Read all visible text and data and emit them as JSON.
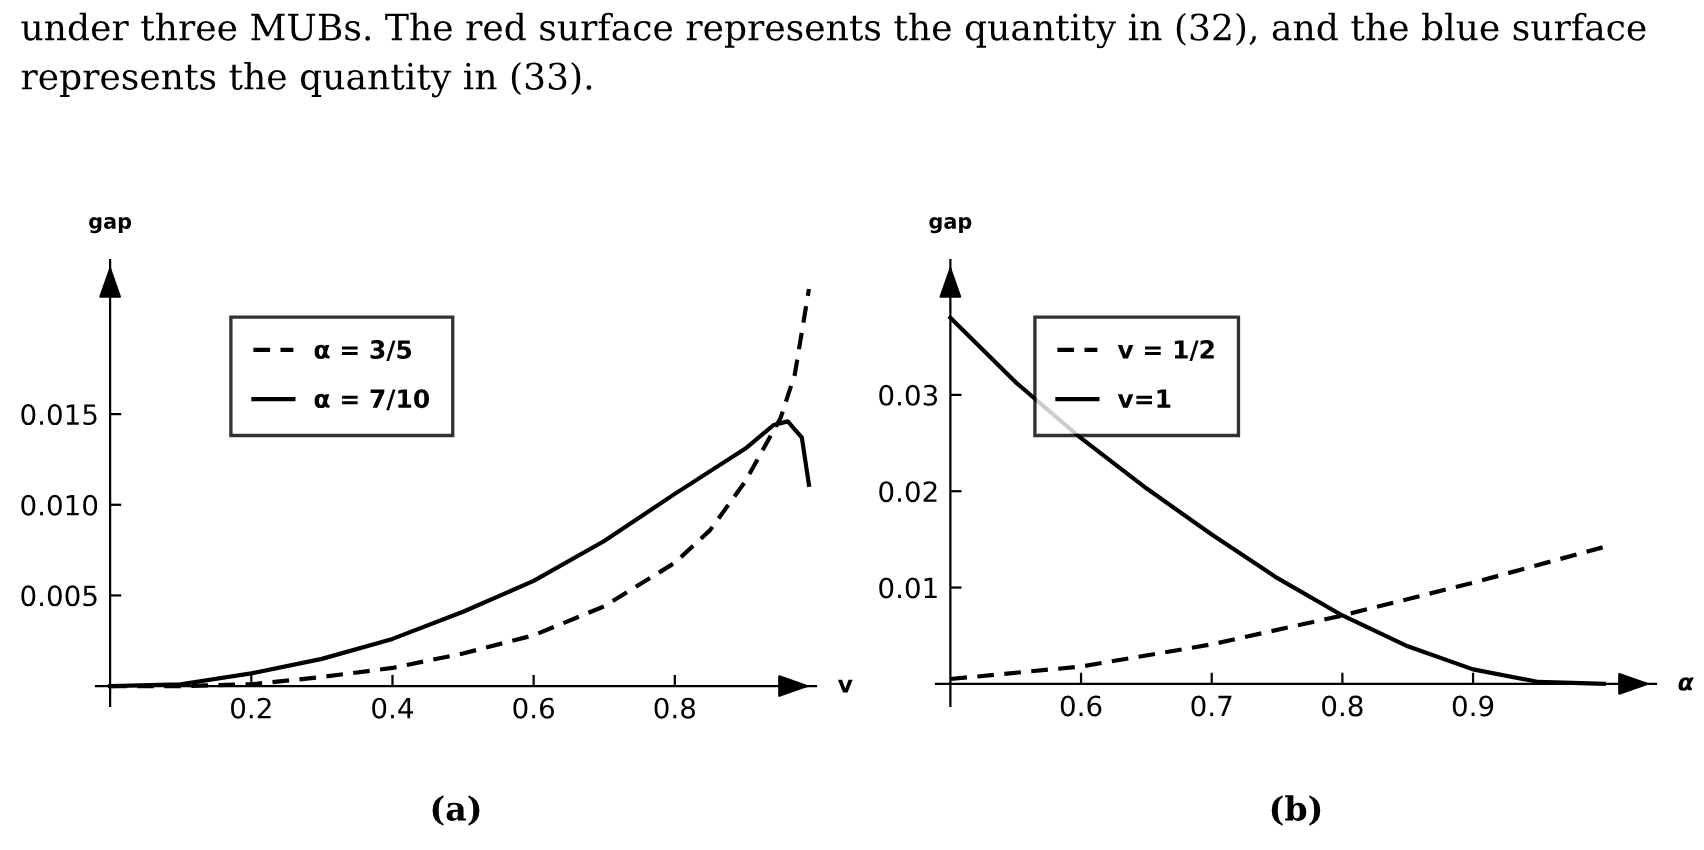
{
  "chart_data": [
    {
      "type": "line",
      "title": "(a)",
      "xlabel": "v",
      "ylabel": "gap",
      "annotations": [
        "under three MUBs. The red surface represents the quantity in (32), and the blue surface represents the quantity in (33)."
      ],
      "xlim": [
        -0.02,
        1.0
      ],
      "ylim": [
        -0.0011,
        0.0235
      ],
      "xticks": [
        0.2,
        0.4,
        0.6,
        0.8
      ],
      "yticks": [
        {
          "value": 0.005,
          "label": "0.005"
        },
        {
          "value": 0.01,
          "label": "0.010"
        },
        {
          "value": 0.015,
          "label": "0.015"
        }
      ],
      "legend": "top left",
      "grid": false,
      "series": [
        {
          "name": "α = 3/5",
          "color": "#000000",
          "line_style": "dashed",
          "x": [
            0,
            0.1,
            0.2,
            0.3,
            0.4,
            0.5,
            0.6,
            0.7,
            0.8,
            0.85,
            0.9,
            0.95,
            0.97,
            0.99
          ],
          "values": [
            0,
            0,
            0.0001,
            0.0005,
            0.001,
            0.0018,
            0.0028,
            0.0044,
            0.0068,
            0.0086,
            0.0113,
            0.0148,
            0.0172,
            0.0219
          ]
        },
        {
          "name": "α = 7/10",
          "color": "#000000",
          "line_style": "solid",
          "x": [
            0,
            0.1,
            0.2,
            0.3,
            0.4,
            0.5,
            0.6,
            0.7,
            0.8,
            0.9,
            0.94,
            0.96,
            0.98,
            0.99
          ],
          "values": [
            0,
            0.0001,
            0.0007,
            0.0015,
            0.0026,
            0.0041,
            0.0058,
            0.008,
            0.0106,
            0.0131,
            0.0144,
            0.0146,
            0.0137,
            0.0111
          ]
        }
      ]
    },
    {
      "type": "line",
      "title": "(b)",
      "xlabel": "α",
      "ylabel": "gap",
      "xlim": [
        0.489,
        1.04
      ],
      "ylim": [
        -0.0023,
        0.044
      ],
      "xticks": [
        0.6,
        0.7,
        0.8,
        0.9
      ],
      "yticks": [
        0.01,
        0.02,
        0.03
      ],
      "legend": "top left",
      "grid": false,
      "series": [
        {
          "name": "v = 1/2",
          "color": "#000000",
          "line_style": "dashed",
          "x": [
            0.5,
            0.6,
            0.7,
            0.8,
            0.9,
            1.0
          ],
          "values": [
            0.0005,
            0.0018,
            0.0041,
            0.0071,
            0.0105,
            0.0142
          ]
        },
        {
          "name": "v=1",
          "color": "#000000",
          "line_style": "solid",
          "x": [
            0.5,
            0.55,
            0.6,
            0.65,
            0.7,
            0.75,
            0.8,
            0.85,
            0.9,
            0.95,
            1.0
          ],
          "values": [
            0.038,
            0.0313,
            0.0255,
            0.0203,
            0.0155,
            0.011,
            0.0071,
            0.0039,
            0.0015,
            0.0002,
            0
          ]
        }
      ]
    }
  ]
}
